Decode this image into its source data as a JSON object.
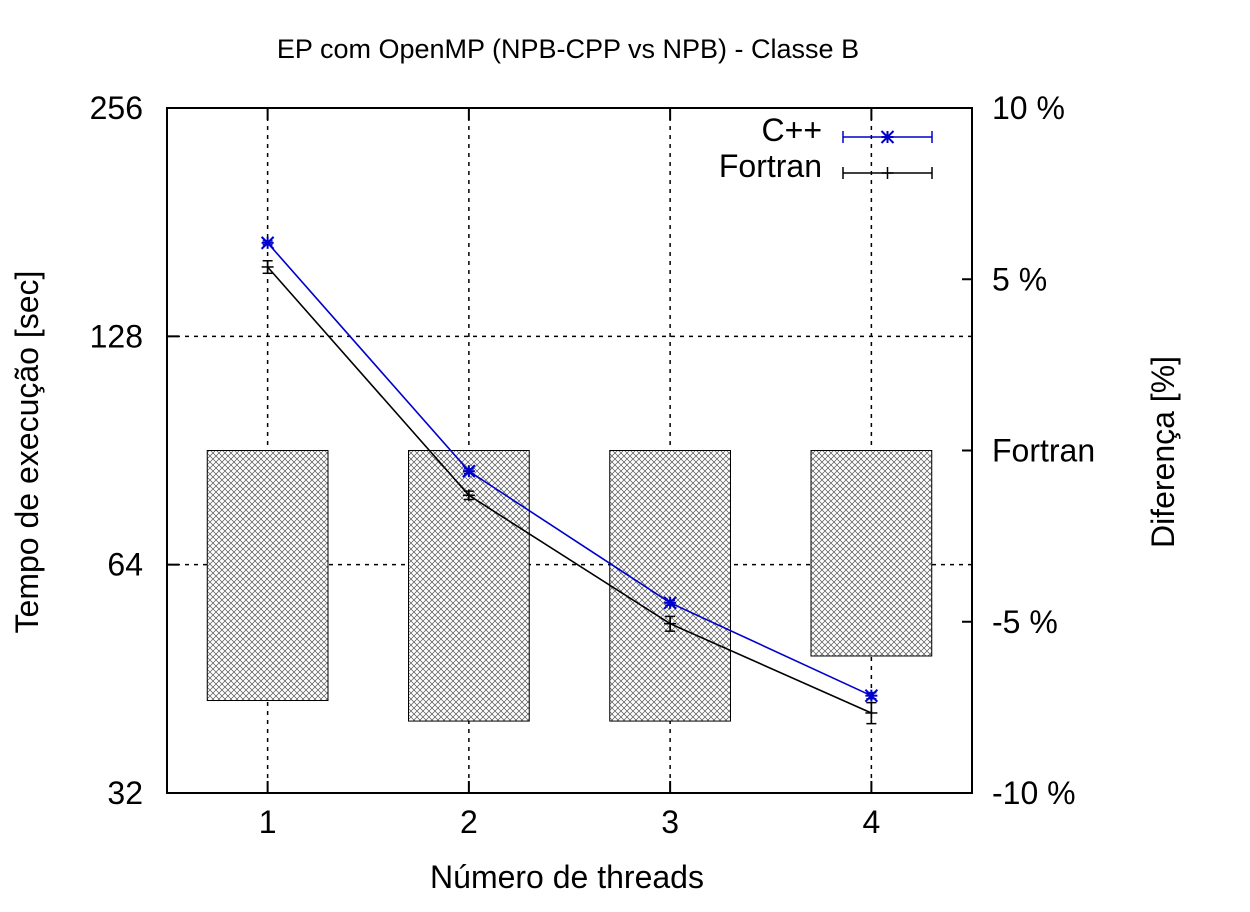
{
  "chart_data": {
    "type": "line",
    "title": "EP com OpenMP (NPB-CPP vs NPB) - Classe B",
    "xlabel": "Número de threads",
    "ylabel": "Tempo de execução [sec]",
    "y2label": "Diferença [%]",
    "x": [
      1,
      2,
      3,
      4
    ],
    "x_tick_labels": [
      "1",
      "2",
      "3",
      "4"
    ],
    "xlim": [
      0.5,
      4.5
    ],
    "y_scale": "log2",
    "ylim": [
      32,
      256
    ],
    "y_tick_labels": [
      "32",
      "64",
      "128",
      "256"
    ],
    "y_tick_values": [
      32,
      64,
      128,
      256
    ],
    "y2lim": [
      -10,
      10
    ],
    "y2_tick_labels": [
      "-10 %",
      "-5 %",
      "Fortran",
      "5 %",
      "10 %"
    ],
    "y2_tick_values": [
      -10,
      -5,
      0,
      5,
      10
    ],
    "grid": true,
    "legend_position": "top-right",
    "series": [
      {
        "name": "C++",
        "color": "#0000cc",
        "marker": "star",
        "values": [
          170,
          85,
          57,
          43
        ],
        "errors": [
          1,
          0.6,
          0.4,
          0.4
        ]
      },
      {
        "name": "Fortran",
        "color": "#000000",
        "marker": "plus",
        "values": [
          158,
          79,
          53.5,
          40.8
        ],
        "errors": [
          3,
          1,
          1.2,
          1.3
        ]
      }
    ],
    "bars": {
      "name": "Diferença [%]",
      "axis": "y2",
      "values": [
        -7.3,
        -7.9,
        -7.9,
        -6.0
      ]
    }
  }
}
